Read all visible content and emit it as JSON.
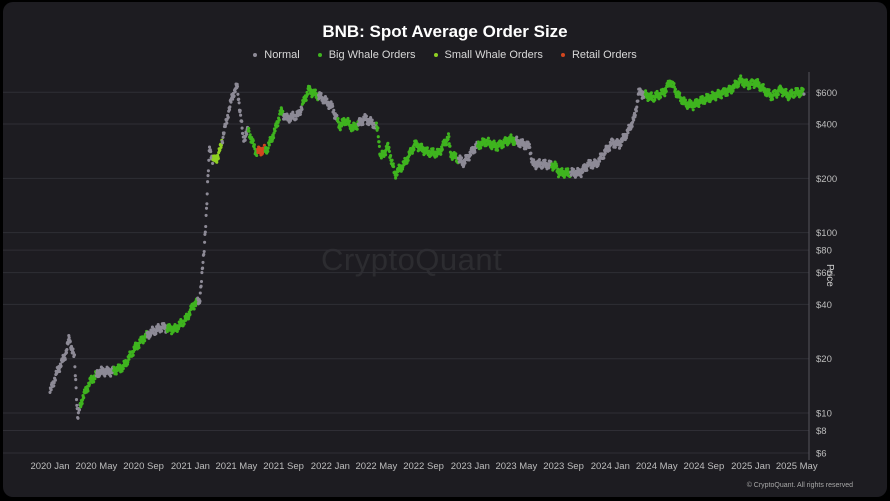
{
  "chart_data": {
    "type": "scatter",
    "title": "BNB: Spot Average Order Size",
    "ylabel": "Price",
    "yscale": "log",
    "ylim": [
      6,
      720
    ],
    "xlim": [
      "2020-01-01",
      "2025-05-20"
    ],
    "grid": "horizontal",
    "legend_position": "top-center",
    "series": [
      {
        "name": "Normal",
        "color": "#8d8a96"
      },
      {
        "name": "Big Whale Orders",
        "color": "#3fb41f"
      },
      {
        "name": "Small Whale Orders",
        "color": "#8fd022"
      },
      {
        "name": "Retail Orders",
        "color": "#d2461e"
      }
    ],
    "x_ticks": [
      "2020 Jan",
      "2020 May",
      "2020 Sep",
      "2021 Jan",
      "2021 May",
      "2021 Sep",
      "2022 Jan",
      "2022 May",
      "2022 Sep",
      "2023 Jan",
      "2023 May",
      "2023 Sep",
      "2024 Jan",
      "2024 May",
      "2024 Sep",
      "2025 Jan",
      "2025 May"
    ],
    "y_ticks": [
      {
        "value": 600,
        "label": "$600"
      },
      {
        "value": 400,
        "label": "$400"
      },
      {
        "value": 200,
        "label": "$200"
      },
      {
        "value": 100,
        "label": "$100"
      },
      {
        "value": 80,
        "label": "$80"
      },
      {
        "value": 60,
        "label": "$60"
      },
      {
        "value": 40,
        "label": "$40"
      },
      {
        "value": 20,
        "label": "$20"
      },
      {
        "value": 10,
        "label": "$10"
      },
      {
        "value": 8,
        "label": "$8"
      },
      {
        "value": 6,
        "label": "$6"
      }
    ],
    "price_path": [
      [
        "2020-01-01",
        13
      ],
      [
        "2020-01-20",
        17
      ],
      [
        "2020-02-10",
        21
      ],
      [
        "2020-02-20",
        26
      ],
      [
        "2020-03-05",
        20
      ],
      [
        "2020-03-13",
        9.5
      ],
      [
        "2020-03-25",
        12
      ],
      [
        "2020-04-15",
        15
      ],
      [
        "2020-05-10",
        17
      ],
      [
        "2020-06-10",
        17
      ],
      [
        "2020-07-10",
        18
      ],
      [
        "2020-08-10",
        23
      ],
      [
        "2020-09-01",
        26
      ],
      [
        "2020-09-20",
        28
      ],
      [
        "2020-10-20",
        30
      ],
      [
        "2020-11-20",
        29
      ],
      [
        "2020-12-20",
        33
      ],
      [
        "2021-01-10",
        40
      ],
      [
        "2021-01-25",
        42
      ],
      [
        "2021-02-05",
        75
      ],
      [
        "2021-02-12",
        135
      ],
      [
        "2021-02-20",
        300
      ],
      [
        "2021-02-28",
        250
      ],
      [
        "2021-03-15",
        265
      ],
      [
        "2021-04-01",
        380
      ],
      [
        "2021-04-20",
        570
      ],
      [
        "2021-05-03",
        650
      ],
      [
        "2021-05-19",
        330
      ],
      [
        "2021-06-01",
        370
      ],
      [
        "2021-06-21",
        280
      ],
      [
        "2021-07-20",
        290
      ],
      [
        "2021-08-10",
        370
      ],
      [
        "2021-08-25",
        470
      ],
      [
        "2021-09-10",
        430
      ],
      [
        "2021-10-10",
        450
      ],
      [
        "2021-11-05",
        620
      ],
      [
        "2021-11-20",
        590
      ],
      [
        "2021-12-10",
        560
      ],
      [
        "2022-01-05",
        500
      ],
      [
        "2022-01-25",
        390
      ],
      [
        "2022-02-10",
        420
      ],
      [
        "2022-03-01",
        380
      ],
      [
        "2022-04-01",
        430
      ],
      [
        "2022-04-25",
        400
      ],
      [
        "2022-05-05",
        370
      ],
      [
        "2022-05-12",
        260
      ],
      [
        "2022-06-01",
        300
      ],
      [
        "2022-06-18",
        210
      ],
      [
        "2022-07-15",
        245
      ],
      [
        "2022-08-10",
        310
      ],
      [
        "2022-09-10",
        280
      ],
      [
        "2022-10-10",
        275
      ],
      [
        "2022-11-05",
        340
      ],
      [
        "2022-11-10",
        275
      ],
      [
        "2022-11-25",
        260
      ],
      [
        "2022-12-15",
        245
      ],
      [
        "2023-01-15",
        300
      ],
      [
        "2023-02-10",
        320
      ],
      [
        "2023-03-10",
        300
      ],
      [
        "2023-04-15",
        330
      ],
      [
        "2023-05-10",
        315
      ],
      [
        "2023-06-05",
        300
      ],
      [
        "2023-06-12",
        240
      ],
      [
        "2023-07-10",
        240
      ],
      [
        "2023-08-10",
        235
      ],
      [
        "2023-08-20",
        215
      ],
      [
        "2023-09-15",
        215
      ],
      [
        "2023-10-15",
        215
      ],
      [
        "2023-11-05",
        240
      ],
      [
        "2023-11-25",
        240
      ],
      [
        "2023-12-10",
        265
      ],
      [
        "2024-01-05",
        315
      ],
      [
        "2024-01-25",
        310
      ],
      [
        "2024-02-15",
        360
      ],
      [
        "2024-03-05",
        440
      ],
      [
        "2024-03-15",
        600
      ],
      [
        "2024-04-01",
        580
      ],
      [
        "2024-04-20",
        560
      ],
      [
        "2024-05-20",
        600
      ],
      [
        "2024-06-06",
        690
      ],
      [
        "2024-06-25",
        580
      ],
      [
        "2024-07-15",
        520
      ],
      [
        "2024-08-05",
        510
      ],
      [
        "2024-08-25",
        540
      ],
      [
        "2024-09-15",
        560
      ],
      [
        "2024-10-15",
        590
      ],
      [
        "2024-11-10",
        620
      ],
      [
        "2024-12-05",
        700
      ],
      [
        "2024-12-25",
        660
      ],
      [
        "2025-01-15",
        680
      ],
      [
        "2025-02-05",
        620
      ],
      [
        "2025-02-25",
        570
      ],
      [
        "2025-03-20",
        620
      ],
      [
        "2025-04-10",
        575
      ],
      [
        "2025-04-30",
        600
      ],
      [
        "2025-05-20",
        600
      ]
    ],
    "classification": [
      {
        "from": "2020-01-01",
        "to": "2020-03-20",
        "series": "Normal"
      },
      {
        "from": "2020-03-20",
        "to": "2020-05-01",
        "series": "Big Whale Orders"
      },
      {
        "from": "2020-05-01",
        "to": "2020-06-15",
        "series": "Normal"
      },
      {
        "from": "2020-06-15",
        "to": "2020-09-10",
        "series": "Big Whale Orders"
      },
      {
        "from": "2020-09-10",
        "to": "2020-11-01",
        "series": "Normal"
      },
      {
        "from": "2020-11-01",
        "to": "2020-12-10",
        "series": "Big Whale Orders"
      },
      {
        "from": "2020-12-10",
        "to": "2021-01-20",
        "series": "Big Whale Orders"
      },
      {
        "from": "2021-01-20",
        "to": "2021-03-01",
        "series": "Normal"
      },
      {
        "from": "2021-03-01",
        "to": "2021-03-25",
        "series": "Small Whale Orders"
      },
      {
        "from": "2021-03-25",
        "to": "2021-06-01",
        "series": "Normal"
      },
      {
        "from": "2021-06-01",
        "to": "2021-06-25",
        "series": "Big Whale Orders"
      },
      {
        "from": "2021-06-25",
        "to": "2021-07-15",
        "series": "Retail Orders"
      },
      {
        "from": "2021-07-15",
        "to": "2021-09-01",
        "series": "Big Whale Orders"
      },
      {
        "from": "2021-09-01",
        "to": "2021-10-20",
        "series": "Normal"
      },
      {
        "from": "2021-10-20",
        "to": "2021-12-01",
        "series": "Big Whale Orders"
      },
      {
        "from": "2021-12-01",
        "to": "2022-01-20",
        "series": "Normal"
      },
      {
        "from": "2022-01-20",
        "to": "2022-03-15",
        "series": "Big Whale Orders"
      },
      {
        "from": "2022-03-15",
        "to": "2022-05-01",
        "series": "Normal"
      },
      {
        "from": "2022-05-01",
        "to": "2022-12-01",
        "series": "Big Whale Orders"
      },
      {
        "from": "2022-12-01",
        "to": "2023-01-20",
        "series": "Normal"
      },
      {
        "from": "2023-01-20",
        "to": "2023-05-01",
        "series": "Big Whale Orders"
      },
      {
        "from": "2023-05-01",
        "to": "2023-06-10",
        "series": "Normal"
      },
      {
        "from": "2023-06-10",
        "to": "2023-08-01",
        "series": "Normal"
      },
      {
        "from": "2023-08-01",
        "to": "2023-09-20",
        "series": "Big Whale Orders"
      },
      {
        "from": "2023-09-20",
        "to": "2024-03-10",
        "series": "Normal"
      },
      {
        "from": "2024-03-10",
        "to": "2024-04-01",
        "series": "Normal"
      },
      {
        "from": "2024-04-01",
        "to": "2025-05-20",
        "series": "Big Whale Orders"
      }
    ]
  },
  "watermark": "CryptoQuant",
  "footer": "© CryptoQuant. All rights reserved"
}
